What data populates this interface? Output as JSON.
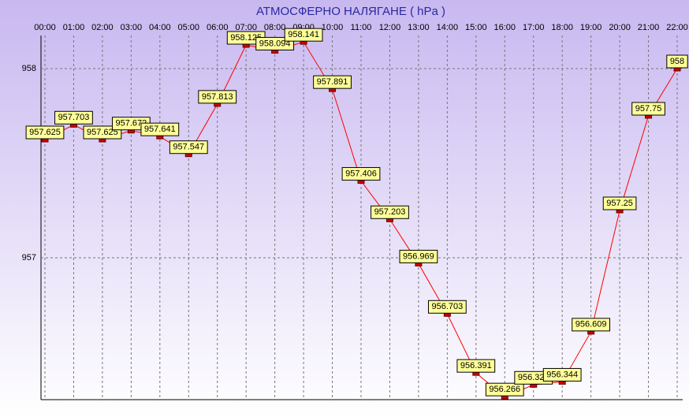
{
  "chart_data": {
    "type": "line",
    "title": "АТМОСФЕРНО НАЛЯГАНЕ  ( hPa )",
    "categories": [
      "00:00",
      "01:00",
      "02:00",
      "03:00",
      "04:00",
      "05:00",
      "06:00",
      "07:00",
      "08:00",
      "09:00",
      "10:00",
      "11:00",
      "12:00",
      "13:00",
      "14:00",
      "15:00",
      "16:00",
      "17:00",
      "18:00",
      "19:00",
      "20:00",
      "21:00",
      "22:00"
    ],
    "values": [
      957.625,
      957.703,
      957.625,
      957.672,
      957.641,
      957.547,
      957.813,
      958.125,
      958.094,
      958.141,
      957.891,
      957.406,
      957.203,
      956.969,
      956.703,
      956.391,
      956.266,
      956.328,
      956.344,
      956.609,
      957.25,
      957.75,
      958
    ],
    "color": "#ff0000",
    "ylim": [
      956.25,
      958.175
    ],
    "yticks": [
      957,
      958
    ],
    "grid": true
  }
}
